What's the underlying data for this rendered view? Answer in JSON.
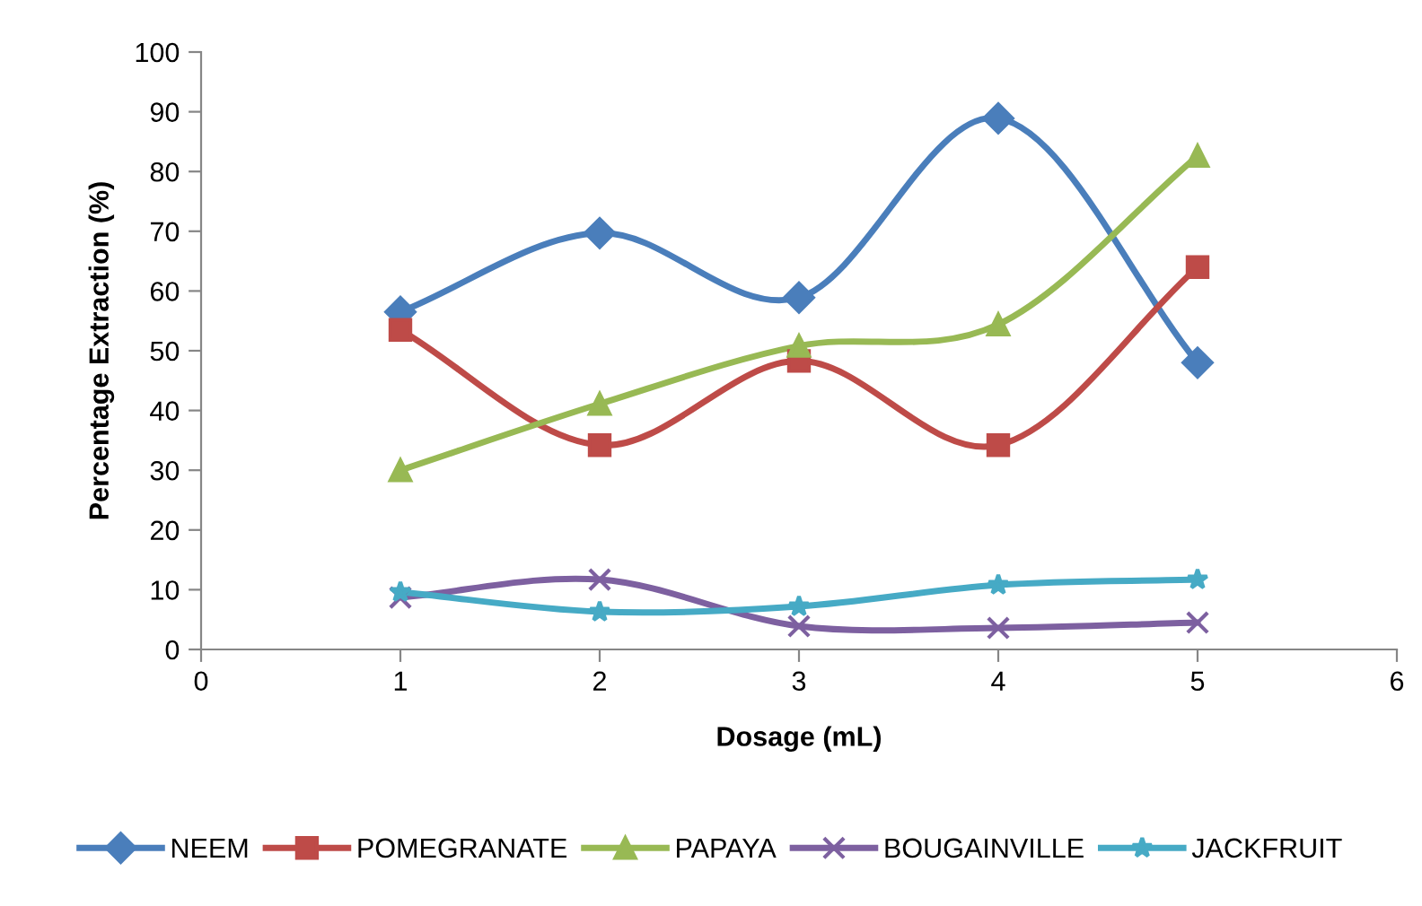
{
  "chart_data": {
    "type": "line",
    "xlabel": "Dosage (mL)",
    "ylabel": "Percentage Extraction (%)",
    "x": [
      1,
      2,
      3,
      4,
      5
    ],
    "xlim": [
      0,
      6
    ],
    "xticks": [
      0,
      1,
      2,
      3,
      4,
      5,
      6
    ],
    "ylim": [
      0,
      100
    ],
    "yticks": [
      0,
      10,
      20,
      30,
      40,
      50,
      60,
      70,
      80,
      90,
      100
    ],
    "grid": false,
    "legend": "bottom",
    "line_style": "solid",
    "series": [
      {
        "name": "NEEM",
        "color": "#4a7ebb",
        "marker": "diamond",
        "values": [
          56.5,
          69.7,
          58.9,
          88.9,
          48
        ]
      },
      {
        "name": "POMEGRANATE",
        "color": "#be4b48",
        "marker": "square",
        "values": [
          53.5,
          34.2,
          48.3,
          34.2,
          64
        ]
      },
      {
        "name": "PAPAYA",
        "color": "#98b954",
        "marker": "triangle",
        "values": [
          30,
          41.1,
          50.8,
          54.4,
          82.6
        ]
      },
      {
        "name": "BOUGAINVILLE",
        "color": "#7d60a0",
        "marker": "cross",
        "values": [
          8.7,
          11.7,
          3.9,
          3.6,
          4.5
        ]
      },
      {
        "name": "JACKFRUIT",
        "color": "#46aac5",
        "marker": "star",
        "values": [
          9.6,
          6.3,
          7.2,
          10.8,
          11.7
        ]
      }
    ]
  }
}
